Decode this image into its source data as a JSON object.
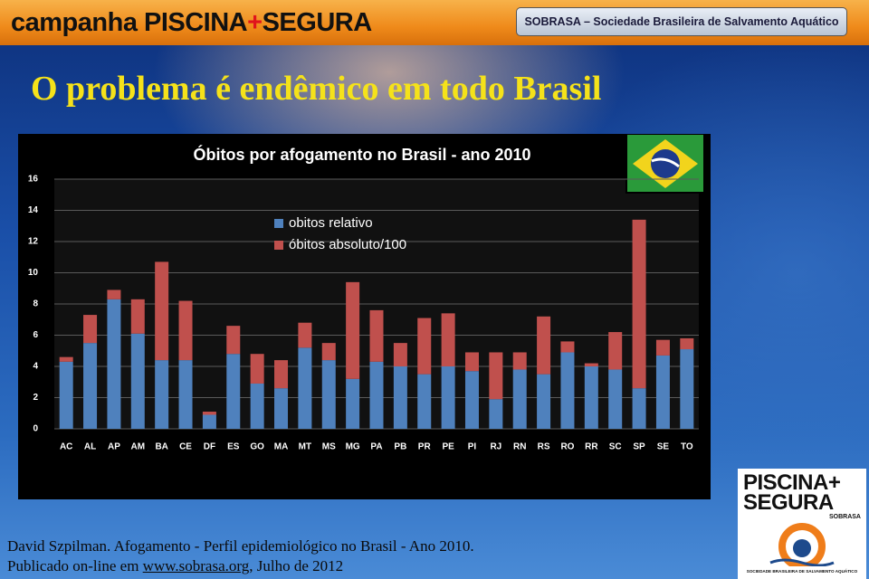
{
  "header": {
    "campaign_prefix": "campanha PISCINA",
    "campaign_plus": "+",
    "campaign_suffix": "SEGURA",
    "organization": "SOBRASA – Sociedade Brasileira de Salvamento Aquático"
  },
  "slide_title": "O problema é endêmico em todo Brasil",
  "chart_data": {
    "type": "stacked_bar",
    "title": "Óbitos por afogamento no Brasil - ano 2010",
    "categories": [
      "AC",
      "AL",
      "AP",
      "AM",
      "BA",
      "CE",
      "DF",
      "ES",
      "GO",
      "MA",
      "MT",
      "MS",
      "MG",
      "PA",
      "PB",
      "PR",
      "PE",
      "PI",
      "RJ",
      "RN",
      "RS",
      "RO",
      "RR",
      "SC",
      "SP",
      "SE",
      "TO"
    ],
    "series": [
      {
        "name": "obitos relativo",
        "color": "#4f81bd",
        "values": [
          4.3,
          5.5,
          8.3,
          6.1,
          4.4,
          4.4,
          0.9,
          4.8,
          2.9,
          2.6,
          5.2,
          4.4,
          3.2,
          4.3,
          4.0,
          3.5,
          4.0,
          3.7,
          1.9,
          3.8,
          3.5,
          4.9,
          4.0,
          3.8,
          2.6,
          4.7,
          5.1
        ]
      },
      {
        "name": "óbitos absoluto/100",
        "color": "#c0504d",
        "values": [
          0.3,
          1.8,
          0.6,
          2.2,
          6.3,
          3.8,
          0.2,
          1.8,
          1.9,
          1.8,
          1.6,
          1.1,
          6.2,
          3.3,
          1.5,
          3.6,
          3.4,
          1.2,
          3.0,
          1.1,
          3.7,
          0.7,
          0.2,
          2.4,
          10.8,
          1.0,
          0.7
        ]
      }
    ],
    "ylim": [
      0,
      16
    ],
    "yticks": [
      0,
      2,
      4,
      6,
      8,
      10,
      12,
      14,
      16
    ],
    "grid": true
  },
  "footer": {
    "citation": "David Szpilman. Afogamento - Perfil epidemiológico no Brasil - Ano 2010.",
    "published_prefix": "Publicado on-line em ",
    "website": "www.sobrasa.org",
    "published_suffix": ", Julho de 2012"
  },
  "logo": {
    "line1": "PISCINA+",
    "line2": "SEGURA",
    "line3": "SOBRASA",
    "line4": "SOCIEDADE BRASILEIRA DE SALVAMENTO AQUÁTICO"
  }
}
